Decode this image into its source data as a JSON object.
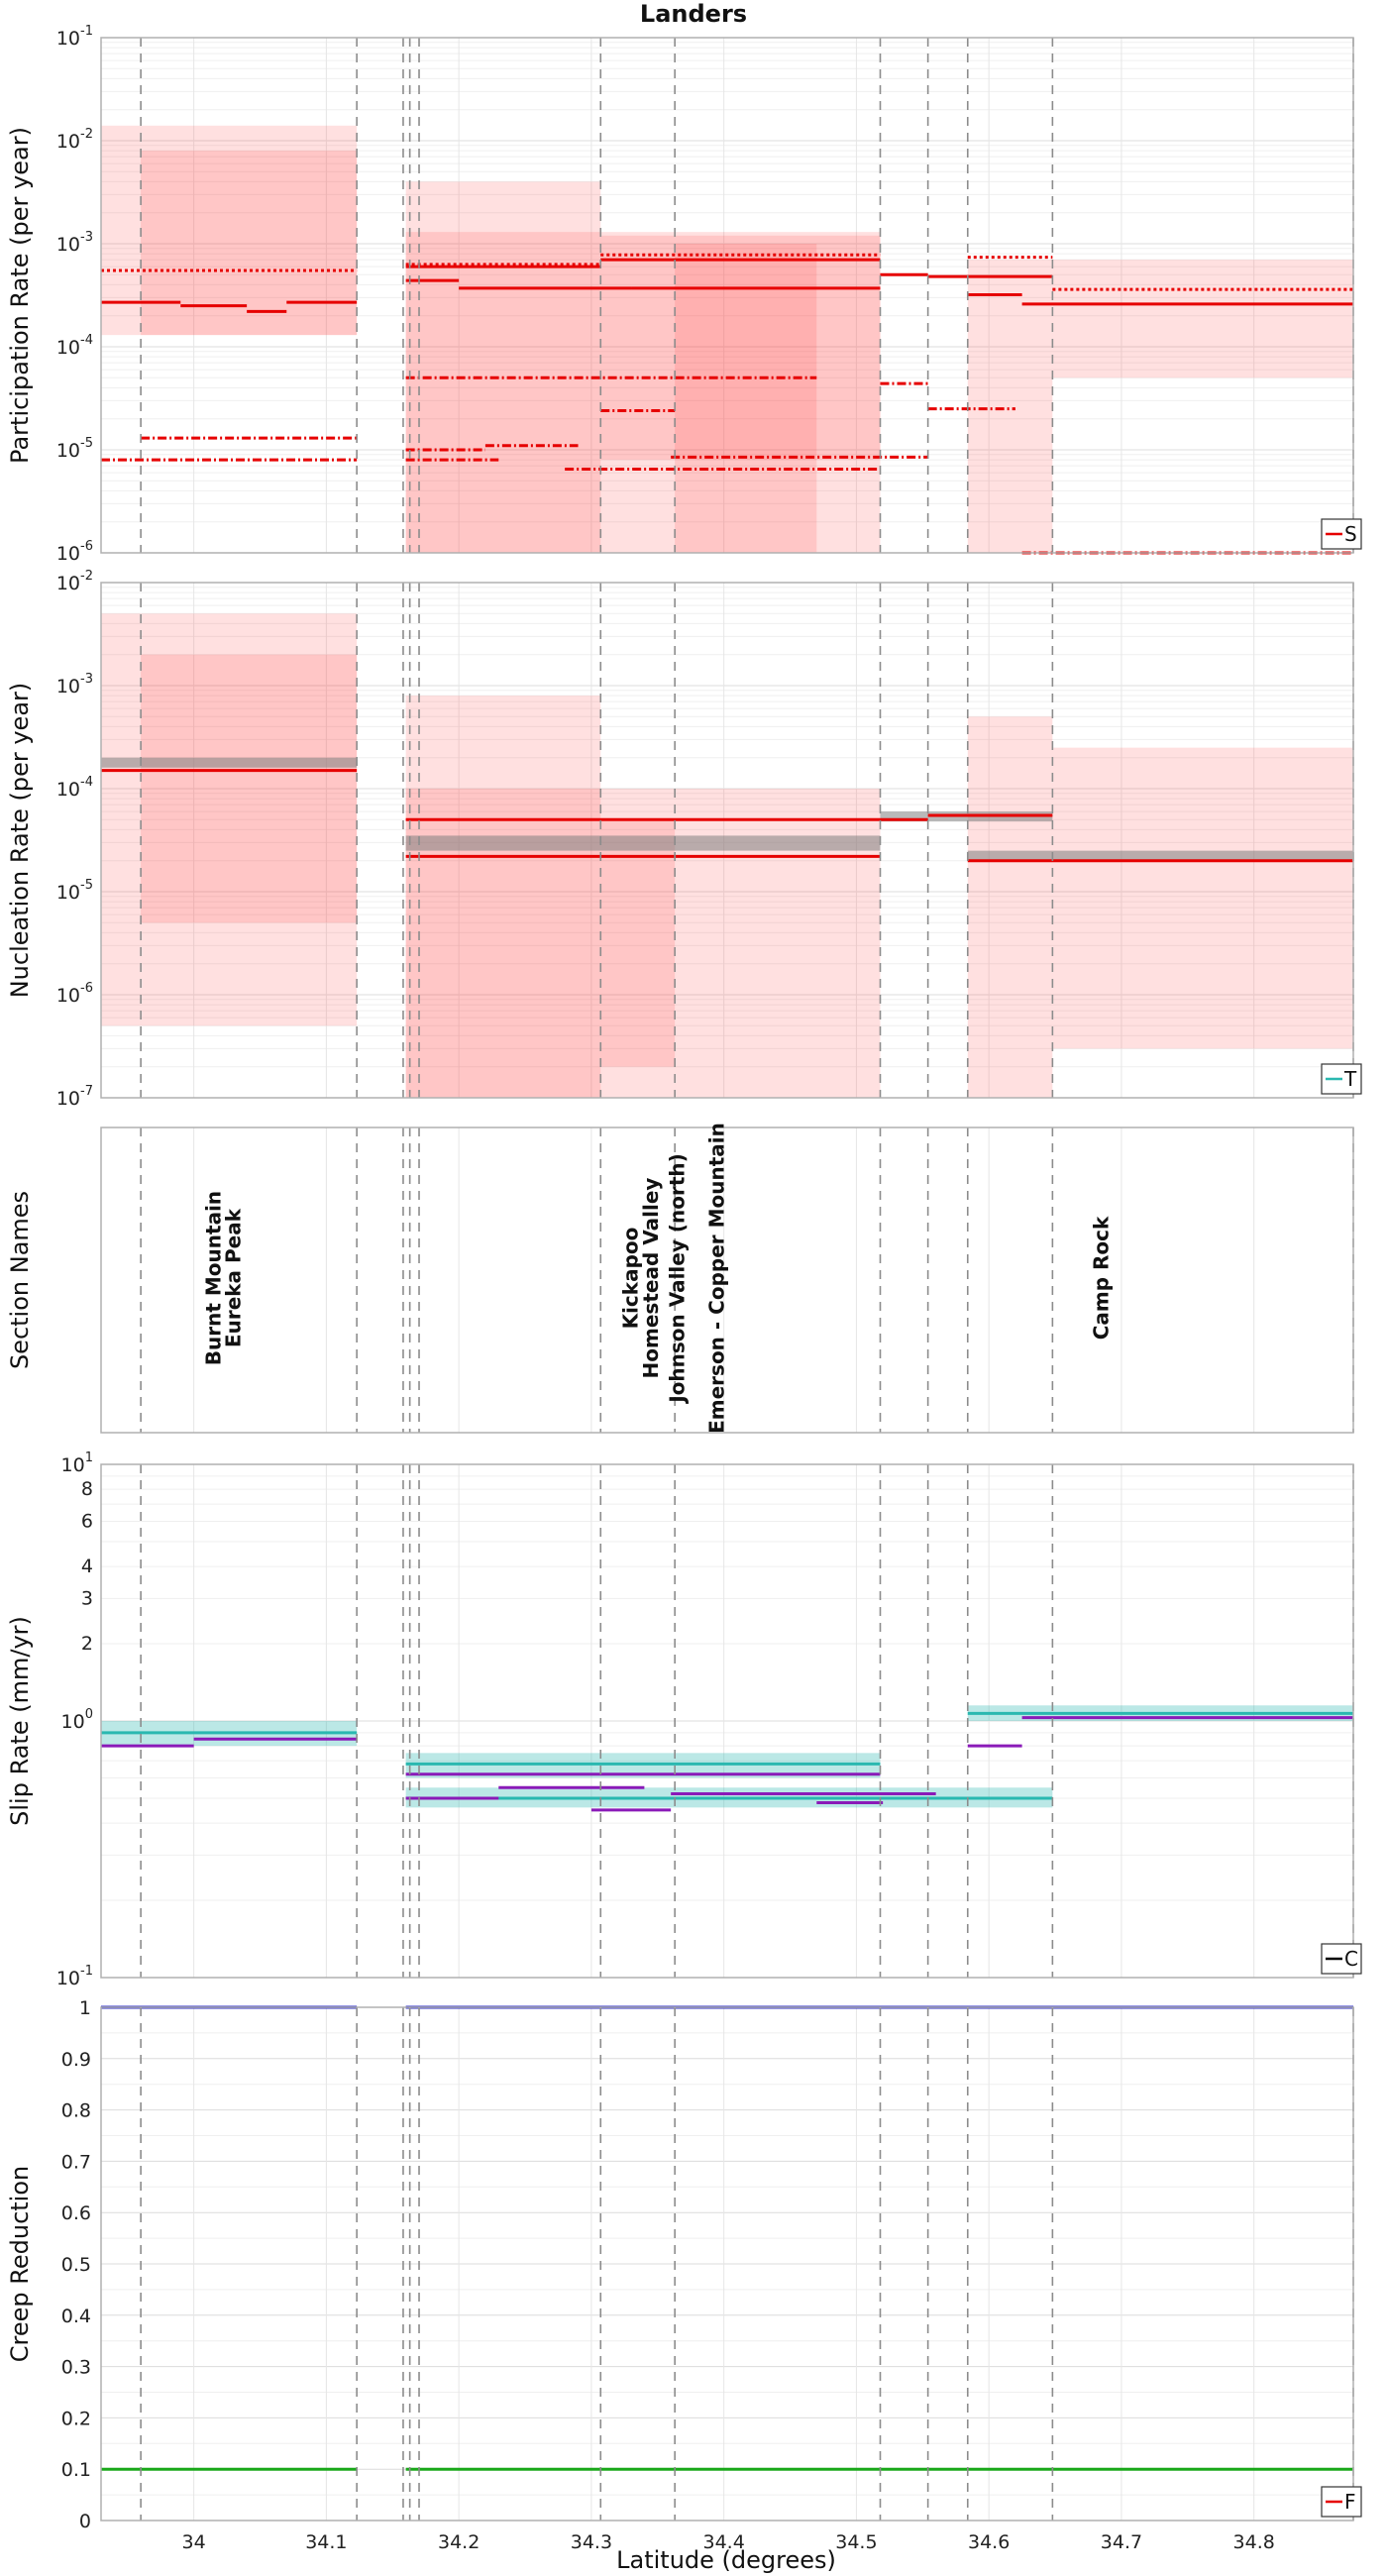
{
  "title": "Landers",
  "xlabel": "Latitude (degrees)",
  "x_ticks": [
    "34",
    "34.1",
    "34.2",
    "34.3",
    "34.4",
    "34.5",
    "34.6",
    "34.7",
    "34.8"
  ],
  "x_range": [
    33.93,
    34.875
  ],
  "section_boundaries": [
    33.96,
    34.123,
    34.158,
    34.163,
    34.17,
    34.307,
    34.363,
    34.518,
    34.554,
    34.584,
    34.648,
    34.875
  ],
  "chart_data": [
    {
      "id": "participation",
      "type": "line",
      "ylabel": "Participation Rate (per year)",
      "yscale": "log",
      "ylim": [
        1e-06,
        0.1
      ],
      "y_ticks": [
        {
          "base": "10",
          "exp": "-1"
        },
        {
          "base": "10",
          "exp": "-2"
        },
        {
          "base": "10",
          "exp": "-3"
        },
        {
          "base": "10",
          "exp": "-4"
        },
        {
          "base": "10",
          "exp": "-5"
        },
        {
          "base": "10",
          "exp": "-6"
        }
      ],
      "legend_label": "S",
      "color": "#e60000",
      "bands": [
        {
          "x": [
            33.93,
            34.123
          ],
          "lo": 0.00013,
          "hi": 0.014
        },
        {
          "x": [
            33.96,
            34.123
          ],
          "lo": 0.00013,
          "hi": 0.008
        },
        {
          "x": [
            34.16,
            34.307
          ],
          "lo": 1e-06,
          "hi": 0.004
        },
        {
          "x": [
            34.16,
            34.518
          ],
          "lo": 1e-06,
          "hi": 0.0013
        },
        {
          "x": [
            34.307,
            34.518
          ],
          "lo": 8e-06,
          "hi": 0.0012
        },
        {
          "x": [
            34.363,
            34.47
          ],
          "lo": 8e-07,
          "hi": 0.001
        },
        {
          "x": [
            34.584,
            34.648
          ],
          "lo": 1e-06,
          "hi": 0.0007
        },
        {
          "x": [
            34.648,
            34.875
          ],
          "lo": 5e-05,
          "hi": 0.0007
        }
      ],
      "series": [
        {
          "style": "solid",
          "segments": [
            {
              "x": [
                33.93,
                33.99
              ],
              "y": 0.00027
            },
            {
              "x": [
                33.99,
                34.04
              ],
              "y": 0.00025
            },
            {
              "x": [
                34.04,
                34.07
              ],
              "y": 0.00022
            },
            {
              "x": [
                34.07,
                34.123
              ],
              "y": 0.00027
            },
            {
              "x": [
                34.16,
                34.2
              ],
              "y": 0.00044
            },
            {
              "x": [
                34.2,
                34.33
              ],
              "y": 0.00037
            },
            {
              "x": [
                34.33,
                34.518
              ],
              "y": 0.00037
            },
            {
              "x": [
                34.518,
                34.554
              ],
              "y": 0.0005
            },
            {
              "x": [
                34.554,
                34.648
              ],
              "y": 0.00048
            },
            {
              "x": [
                34.584,
                34.625
              ],
              "y": 0.00032
            },
            {
              "x": [
                34.625,
                34.875
              ],
              "y": 0.00026
            }
          ]
        },
        {
          "style": "solid",
          "segments": [
            {
              "x": [
                34.16,
                34.307
              ],
              "y": 0.0006
            },
            {
              "x": [
                34.307,
                34.518
              ],
              "y": 0.0007
            }
          ]
        },
        {
          "style": "dotted",
          "segments": [
            {
              "x": [
                33.93,
                34.123
              ],
              "y": 0.00055
            },
            {
              "x": [
                34.16,
                34.307
              ],
              "y": 0.00063
            },
            {
              "x": [
                34.307,
                34.518
              ],
              "y": 0.00078
            },
            {
              "x": [
                34.584,
                34.648
              ],
              "y": 0.00074
            },
            {
              "x": [
                34.648,
                34.875
              ],
              "y": 0.00036
            }
          ]
        },
        {
          "style": "dashdot",
          "segments": [
            {
              "x": [
                33.93,
                34.123
              ],
              "y": 8e-06
            },
            {
              "x": [
                33.96,
                34.123
              ],
              "y": 1.3e-05
            },
            {
              "x": [
                34.16,
                34.23
              ],
              "y": 8e-06
            },
            {
              "x": [
                34.16,
                34.22
              ],
              "y": 1e-05
            },
            {
              "x": [
                34.22,
                34.29
              ],
              "y": 1.1e-05
            },
            {
              "x": [
                34.28,
                34.518
              ],
              "y": 6.5e-06
            },
            {
              "x": [
                34.36,
                34.554
              ],
              "y": 8.5e-06
            },
            {
              "x": [
                34.307,
                34.363
              ],
              "y": 2.4e-05
            },
            {
              "x": [
                34.16,
                34.47
              ],
              "y": 5e-05
            },
            {
              "x": [
                34.518,
                34.554
              ],
              "y": 4.4e-05
            },
            {
              "x": [
                34.554,
                34.62
              ],
              "y": 2.5e-05
            },
            {
              "x": [
                34.625,
                34.875
              ],
              "y": 8.5e-07
            }
          ]
        }
      ]
    },
    {
      "id": "nucleation",
      "type": "line",
      "ylabel": "Nucleation Rate (per year)",
      "yscale": "log",
      "ylim": [
        1e-07,
        0.01
      ],
      "y_ticks": [
        {
          "base": "10",
          "exp": "-2"
        },
        {
          "base": "10",
          "exp": "-3"
        },
        {
          "base": "10",
          "exp": "-4"
        },
        {
          "base": "10",
          "exp": "-5"
        },
        {
          "base": "10",
          "exp": "-6"
        },
        {
          "base": "10",
          "exp": "-7"
        }
      ],
      "legend_label": "T",
      "color": "#e60000",
      "bands": [
        {
          "x": [
            33.93,
            34.123
          ],
          "lo": 5e-07,
          "hi": 0.005
        },
        {
          "x": [
            33.96,
            34.123
          ],
          "lo": 5e-06,
          "hi": 0.002
        },
        {
          "x": [
            34.16,
            34.307
          ],
          "lo": 1e-07,
          "hi": 0.0008
        },
        {
          "x": [
            34.16,
            34.518
          ],
          "lo": 1e-07,
          "hi": 0.0001
        },
        {
          "x": [
            34.307,
            34.363
          ],
          "lo": 2e-07,
          "hi": 5e-05
        },
        {
          "x": [
            34.584,
            34.648
          ],
          "lo": 1e-07,
          "hi": 0.0005
        },
        {
          "x": [
            34.648,
            34.875
          ],
          "lo": 3e-07,
          "hi": 0.00025
        }
      ],
      "series": [
        {
          "style": "solid",
          "segments": [
            {
              "x": [
                33.93,
                34.123
              ],
              "y": 0.00015
            },
            {
              "x": [
                34.16,
                34.518
              ],
              "y": 2.2e-05
            },
            {
              "x": [
                34.16,
                34.518
              ],
              "y": 5e-05
            },
            {
              "x": [
                34.518,
                34.554
              ],
              "y": 5e-05
            },
            {
              "x": [
                34.554,
                34.648
              ],
              "y": 5.5e-05
            },
            {
              "x": [
                34.584,
                34.875
              ],
              "y": 2e-05
            }
          ]
        }
      ],
      "mean_band": {
        "color": "#888888",
        "segments": [
          {
            "x": [
              33.93,
              34.123
            ],
            "lo": 0.00016,
            "hi": 0.0002
          },
          {
            "x": [
              34.16,
              34.518
            ],
            "lo": 2.5e-05,
            "hi": 3.5e-05
          },
          {
            "x": [
              34.518,
              34.648
            ],
            "lo": 4.8e-05,
            "hi": 6e-05
          },
          {
            "x": [
              34.584,
              34.875
            ],
            "lo": 2e-05,
            "hi": 2.5e-05
          }
        ]
      }
    },
    {
      "id": "sections",
      "type": "table",
      "ylabel": "Section Names",
      "names": [
        {
          "label": "Burnt Mountain",
          "x": 34.02
        },
        {
          "label": "Eureka Peak",
          "x": 34.035
        },
        {
          "label": "Kickapoo",
          "x": 34.335
        },
        {
          "label": "Homestead Valley",
          "x": 34.35
        },
        {
          "label": "Johnson Valley (north)",
          "x": 34.37
        },
        {
          "label": "Emerson - Copper Mountain",
          "x": 34.4
        },
        {
          "label": "Camp Rock",
          "x": 34.69
        }
      ]
    },
    {
      "id": "sliprate",
      "type": "line",
      "ylabel": "Slip Rate (mm/yr)",
      "yscale": "log",
      "ylim": [
        0.1,
        10
      ],
      "y_ticks": [
        {
          "base": "10",
          "exp": "1"
        },
        {
          "base": "10",
          "exp": "0"
        },
        {
          "base": "10",
          "exp": "-1"
        }
      ],
      "y_minor_labels": [
        "8",
        "6",
        "4",
        "3",
        "2"
      ],
      "legend_label": "C",
      "teal": "#2ab8b0",
      "purple": "#8a1ab8",
      "bands": [
        {
          "x": [
            33.93,
            34.123
          ],
          "lo": 0.8,
          "hi": 1.0
        },
        {
          "x": [
            34.16,
            34.518
          ],
          "lo": 0.6,
          "hi": 0.75
        },
        {
          "x": [
            34.16,
            34.648
          ],
          "lo": 0.46,
          "hi": 0.55
        },
        {
          "x": [
            34.584,
            34.875
          ],
          "lo": 1.0,
          "hi": 1.15
        }
      ],
      "teal_segments": [
        {
          "x": [
            33.93,
            34.123
          ],
          "y": 0.9
        },
        {
          "x": [
            34.16,
            34.518
          ],
          "y": 0.68
        },
        {
          "x": [
            34.16,
            34.648
          ],
          "y": 0.5
        },
        {
          "x": [
            34.584,
            34.875
          ],
          "y": 1.07
        }
      ],
      "purple_segments": [
        {
          "x": [
            33.93,
            34.0
          ],
          "y": 0.8
        },
        {
          "x": [
            34.0,
            34.123
          ],
          "y": 0.85
        },
        {
          "x": [
            34.16,
            34.518
          ],
          "y": 0.62
        },
        {
          "x": [
            34.16,
            34.23
          ],
          "y": 0.5
        },
        {
          "x": [
            34.23,
            34.34
          ],
          "y": 0.55
        },
        {
          "x": [
            34.3,
            34.36
          ],
          "y": 0.45
        },
        {
          "x": [
            34.36,
            34.56
          ],
          "y": 0.52
        },
        {
          "x": [
            34.47,
            34.52
          ],
          "y": 0.48
        },
        {
          "x": [
            34.584,
            34.625
          ],
          "y": 0.8
        },
        {
          "x": [
            34.625,
            34.875
          ],
          "y": 1.03
        }
      ]
    },
    {
      "id": "creep",
      "type": "line",
      "ylabel": "Creep Reduction",
      "yscale": "linear",
      "ylim": [
        0,
        1
      ],
      "y_ticks": [
        "0",
        "0.1",
        "0.2",
        "0.3",
        "0.4",
        "0.5",
        "0.6",
        "0.7",
        "0.8",
        "0.9",
        "1"
      ],
      "legend_label": "F",
      "series": [
        {
          "name": "",
          "color": "#2a2ac8",
          "segments": [
            {
              "x": [
                33.93,
                34.123
              ],
              "y": 1.0
            },
            {
              "x": [
                34.16,
                34.875
              ],
              "y": 1.0
            }
          ]
        },
        {
          "name": "",
          "color": "#1aa81a",
          "segments": [
            {
              "x": [
                33.93,
                34.123
              ],
              "y": 0.1
            },
            {
              "x": [
                34.16,
                34.875
              ],
              "y": 0.1
            }
          ]
        }
      ]
    }
  ]
}
